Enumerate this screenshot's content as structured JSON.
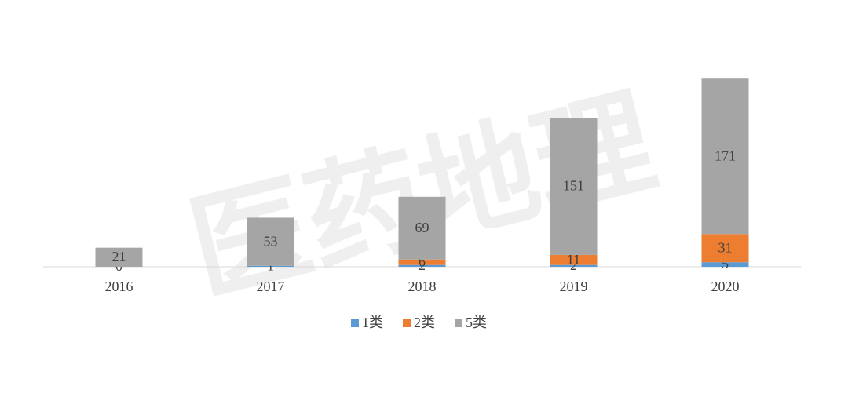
{
  "chart_data": {
    "type": "bar",
    "stacked": true,
    "watermark": "医药地理",
    "categories": [
      "2016",
      "2017",
      "2018",
      "2019",
      "2020"
    ],
    "series": [
      {
        "name": "1类",
        "color": "#5b9bd5",
        "values": [
          0,
          1,
          2,
          2,
          5
        ]
      },
      {
        "name": "2类",
        "color": "#ed7d31",
        "values": [
          null,
          null,
          6,
          11,
          31
        ]
      },
      {
        "name": "5类",
        "color": "#a5a5a5",
        "values": [
          21,
          53,
          69,
          151,
          171
        ]
      }
    ],
    "ylim": [
      0,
      240
    ],
    "legend": "bottom"
  }
}
